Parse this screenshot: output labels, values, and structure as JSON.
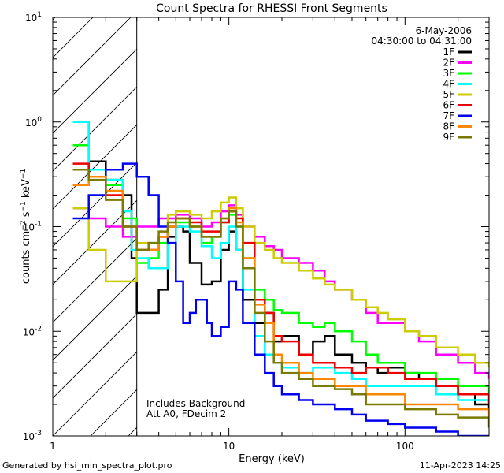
{
  "chart_data": {
    "type": "line",
    "title": "Count Spectra for RHESSI Front Segments",
    "xlabel": "Energy (keV)",
    "ylabel_parts": {
      "base": "counts cm",
      "exp1": "−2",
      "mid": " s",
      "exp2": "−1",
      "end": " keV",
      "exp3": "−1"
    },
    "x_scale": "log",
    "y_scale": "log",
    "xlim": [
      1,
      300
    ],
    "ylim": [
      0.001,
      10
    ],
    "x_ticks": [
      {
        "value": 1,
        "label": "1"
      },
      {
        "value": 10,
        "label": "10"
      },
      {
        "value": 100,
        "label": "100"
      }
    ],
    "y_ticks": [
      {
        "value": 0.001,
        "base": "10",
        "exp": "-3"
      },
      {
        "value": 0.01,
        "base": "10",
        "exp": "-2"
      },
      {
        "value": 0.1,
        "base": "10",
        "exp": "-1"
      },
      {
        "value": 1,
        "base": "10",
        "exp": "0"
      },
      {
        "value": 10,
        "base": "10",
        "exp": "1"
      }
    ],
    "hatch_region": {
      "xmin": 1,
      "xmax": 3
    },
    "date": "6-May-2006",
    "time_range": "04:30:00 to 04:31:00",
    "annotations": [
      "Includes Background",
      "Att A0, FDecim 2"
    ],
    "series": [
      {
        "name": "1F",
        "color": "#000000",
        "points": [
          [
            1.3,
            1.0
          ],
          [
            1.6,
            0.42
          ],
          [
            2.0,
            0.28
          ],
          [
            2.5,
            0.2
          ],
          [
            2.8,
            0.05
          ],
          [
            3.0,
            0.015
          ],
          [
            3.5,
            0.015
          ],
          [
            4.0,
            0.025
          ],
          [
            4.5,
            0.08
          ],
          [
            5.0,
            0.1
          ],
          [
            5.5,
            0.09
          ],
          [
            6.0,
            0.045
          ],
          [
            7.0,
            0.028
          ],
          [
            8.0,
            0.03
          ],
          [
            9.0,
            0.06
          ],
          [
            10.0,
            0.09
          ],
          [
            11.0,
            0.06
          ],
          [
            12.0,
            0.02
          ],
          [
            14.0,
            0.012
          ],
          [
            16.0,
            0.015
          ],
          [
            18.0,
            0.008
          ],
          [
            20.0,
            0.009
          ],
          [
            25.0,
            0.006
          ],
          [
            30.0,
            0.008
          ],
          [
            35.0,
            0.009
          ],
          [
            40.0,
            0.006
          ],
          [
            50.0,
            0.005
          ],
          [
            60.0,
            0.0045
          ],
          [
            70.0,
            0.004
          ],
          [
            80.0,
            0.0045
          ],
          [
            100.0,
            0.004
          ],
          [
            120.0,
            0.0035
          ],
          [
            150.0,
            0.003
          ],
          [
            200.0,
            0.0025
          ],
          [
            250.0,
            0.002
          ],
          [
            300.0,
            0.0018
          ]
        ]
      },
      {
        "name": "2F",
        "color": "#ff00ff",
        "points": [
          [
            1.3,
            0.15
          ],
          [
            1.6,
            0.12
          ],
          [
            2.0,
            0.1
          ],
          [
            2.5,
            0.08
          ],
          [
            3.0,
            0.1
          ],
          [
            3.5,
            0.1
          ],
          [
            4.0,
            0.12
          ],
          [
            4.5,
            0.12
          ],
          [
            5.0,
            0.13
          ],
          [
            6.0,
            0.12
          ],
          [
            7.0,
            0.1
          ],
          [
            8.0,
            0.11
          ],
          [
            9.0,
            0.14
          ],
          [
            10.0,
            0.16
          ],
          [
            11.0,
            0.13
          ],
          [
            12.0,
            0.1
          ],
          [
            14.0,
            0.08
          ],
          [
            16.0,
            0.065
          ],
          [
            18.0,
            0.06
          ],
          [
            20.0,
            0.05
          ],
          [
            25.0,
            0.045
          ],
          [
            30.0,
            0.038
          ],
          [
            35.0,
            0.03
          ],
          [
            40.0,
            0.025
          ],
          [
            50.0,
            0.02
          ],
          [
            60.0,
            0.015
          ],
          [
            70.0,
            0.012
          ],
          [
            80.0,
            0.012
          ],
          [
            100.0,
            0.01
          ],
          [
            120.0,
            0.008
          ],
          [
            150.0,
            0.006
          ],
          [
            200.0,
            0.005
          ],
          [
            250.0,
            0.004
          ],
          [
            300.0,
            0.0035
          ]
        ]
      },
      {
        "name": "3F",
        "color": "#00ff00",
        "points": [
          [
            1.3,
            0.6
          ],
          [
            1.6,
            0.35
          ],
          [
            2.0,
            0.25
          ],
          [
            2.5,
            0.12
          ],
          [
            3.0,
            0.045
          ],
          [
            3.5,
            0.05
          ],
          [
            4.0,
            0.07
          ],
          [
            4.5,
            0.1
          ],
          [
            5.0,
            0.11
          ],
          [
            6.0,
            0.1
          ],
          [
            7.0,
            0.07
          ],
          [
            8.0,
            0.08
          ],
          [
            9.0,
            0.11
          ],
          [
            10.0,
            0.13
          ],
          [
            11.0,
            0.1
          ],
          [
            12.0,
            0.05
          ],
          [
            14.0,
            0.025
          ],
          [
            16.0,
            0.02
          ],
          [
            18.0,
            0.016
          ],
          [
            20.0,
            0.015
          ],
          [
            25.0,
            0.012
          ],
          [
            30.0,
            0.011
          ],
          [
            35.0,
            0.012
          ],
          [
            40.0,
            0.01
          ],
          [
            50.0,
            0.008
          ],
          [
            60.0,
            0.006
          ],
          [
            70.0,
            0.005
          ],
          [
            80.0,
            0.005
          ],
          [
            100.0,
            0.004
          ],
          [
            150.0,
            0.0035
          ],
          [
            200.0,
            0.003
          ],
          [
            300.0,
            0.0025
          ]
        ]
      },
      {
        "name": "4F",
        "color": "#00ffff",
        "points": [
          [
            1.3,
            1.0
          ],
          [
            1.6,
            0.35
          ],
          [
            2.0,
            0.28
          ],
          [
            2.5,
            0.14
          ],
          [
            2.8,
            0.06
          ],
          [
            3.0,
            0.05
          ],
          [
            3.5,
            0.04
          ],
          [
            4.0,
            0.04
          ],
          [
            4.5,
            0.07
          ],
          [
            5.0,
            0.1
          ],
          [
            6.0,
            0.09
          ],
          [
            7.0,
            0.065
          ],
          [
            8.0,
            0.05
          ],
          [
            9.0,
            0.07
          ],
          [
            10.0,
            0.1
          ],
          [
            11.0,
            0.06
          ],
          [
            12.0,
            0.025
          ],
          [
            14.0,
            0.009
          ],
          [
            16.0,
            0.006
          ],
          [
            18.0,
            0.005
          ],
          [
            20.0,
            0.0045
          ],
          [
            25.0,
            0.004
          ],
          [
            30.0,
            0.0045
          ],
          [
            40.0,
            0.004
          ],
          [
            50.0,
            0.0035
          ],
          [
            60.0,
            0.003
          ],
          [
            80.0,
            0.003
          ],
          [
            100.0,
            0.003
          ],
          [
            150.0,
            0.0025
          ],
          [
            200.0,
            0.0022
          ],
          [
            300.0,
            0.002
          ]
        ]
      },
      {
        "name": "5F",
        "color": "#cccc00",
        "points": [
          [
            1.3,
            0.15
          ],
          [
            1.6,
            0.06
          ],
          [
            2.0,
            0.03
          ],
          [
            2.5,
            0.03
          ],
          [
            3.0,
            0.07
          ],
          [
            3.5,
            0.07
          ],
          [
            4.0,
            0.08
          ],
          [
            4.5,
            0.13
          ],
          [
            5.0,
            0.14
          ],
          [
            6.0,
            0.13
          ],
          [
            7.0,
            0.12
          ],
          [
            8.0,
            0.14
          ],
          [
            9.0,
            0.17
          ],
          [
            10.0,
            0.19
          ],
          [
            11.0,
            0.15
          ],
          [
            12.0,
            0.1
          ],
          [
            14.0,
            0.07
          ],
          [
            16.0,
            0.06
          ],
          [
            18.0,
            0.05
          ],
          [
            20.0,
            0.045
          ],
          [
            25.0,
            0.038
          ],
          [
            30.0,
            0.032
          ],
          [
            35.0,
            0.028
          ],
          [
            40.0,
            0.025
          ],
          [
            50.0,
            0.02
          ],
          [
            60.0,
            0.017
          ],
          [
            70.0,
            0.015
          ],
          [
            80.0,
            0.013
          ],
          [
            100.0,
            0.01
          ],
          [
            120.0,
            0.009
          ],
          [
            150.0,
            0.007
          ],
          [
            200.0,
            0.006
          ],
          [
            250.0,
            0.005
          ],
          [
            300.0,
            0.0045
          ]
        ]
      },
      {
        "name": "6F",
        "color": "#ee0000",
        "points": [
          [
            1.3,
            0.4
          ],
          [
            1.6,
            0.3
          ],
          [
            2.0,
            0.2
          ],
          [
            2.5,
            0.1
          ],
          [
            3.0,
            0.06
          ],
          [
            3.5,
            0.06
          ],
          [
            4.0,
            0.08
          ],
          [
            4.5,
            0.1
          ],
          [
            5.0,
            0.12
          ],
          [
            6.0,
            0.11
          ],
          [
            7.0,
            0.09
          ],
          [
            8.0,
            0.09
          ],
          [
            9.0,
            0.11
          ],
          [
            10.0,
            0.14
          ],
          [
            11.0,
            0.12
          ],
          [
            12.0,
            0.07
          ],
          [
            14.0,
            0.02
          ],
          [
            16.0,
            0.015
          ],
          [
            18.0,
            0.009
          ],
          [
            20.0,
            0.008
          ],
          [
            25.0,
            0.006
          ],
          [
            30.0,
            0.005
          ],
          [
            40.0,
            0.0045
          ],
          [
            50.0,
            0.004
          ],
          [
            60.0,
            0.0045
          ],
          [
            80.0,
            0.004
          ],
          [
            100.0,
            0.0035
          ],
          [
            150.0,
            0.003
          ],
          [
            200.0,
            0.0025
          ],
          [
            300.0,
            0.002
          ]
        ]
      },
      {
        "name": "7F",
        "color": "#0000ee",
        "points": [
          [
            1.3,
            0.12
          ],
          [
            1.6,
            0.2
          ],
          [
            2.0,
            0.35
          ],
          [
            2.5,
            0.4
          ],
          [
            3.0,
            0.3
          ],
          [
            3.5,
            0.2
          ],
          [
            4.0,
            0.1
          ],
          [
            4.5,
            0.07
          ],
          [
            5.0,
            0.03
          ],
          [
            5.5,
            0.012
          ],
          [
            6.0,
            0.015
          ],
          [
            6.5,
            0.02
          ],
          [
            7.0,
            0.02
          ],
          [
            7.5,
            0.012
          ],
          [
            8.0,
            0.009
          ],
          [
            9.0,
            0.011
          ],
          [
            10.0,
            0.03
          ],
          [
            11.0,
            0.025
          ],
          [
            12.0,
            0.012
          ],
          [
            14.0,
            0.006
          ],
          [
            16.0,
            0.004
          ],
          [
            18.0,
            0.003
          ],
          [
            20.0,
            0.0025
          ],
          [
            25.0,
            0.0022
          ],
          [
            30.0,
            0.002
          ],
          [
            40.0,
            0.0018
          ],
          [
            50.0,
            0.0016
          ],
          [
            60.0,
            0.0014
          ],
          [
            80.0,
            0.0013
          ],
          [
            100.0,
            0.0012
          ],
          [
            150.0,
            0.0011
          ],
          [
            200.0,
            0.001
          ],
          [
            300.0,
            0.0009
          ]
        ]
      },
      {
        "name": "8F",
        "color": "#ff8800",
        "points": [
          [
            1.3,
            0.25
          ],
          [
            1.6,
            0.3
          ],
          [
            2.0,
            0.22
          ],
          [
            2.5,
            0.1
          ],
          [
            3.0,
            0.06
          ],
          [
            3.5,
            0.06
          ],
          [
            4.0,
            0.08
          ],
          [
            4.5,
            0.1
          ],
          [
            5.0,
            0.12
          ],
          [
            6.0,
            0.1
          ],
          [
            7.0,
            0.08
          ],
          [
            8.0,
            0.08
          ],
          [
            9.0,
            0.12
          ],
          [
            10.0,
            0.15
          ],
          [
            11.0,
            0.11
          ],
          [
            12.0,
            0.05
          ],
          [
            14.0,
            0.018
          ],
          [
            16.0,
            0.012
          ],
          [
            18.0,
            0.006
          ],
          [
            20.0,
            0.005
          ],
          [
            25.0,
            0.004
          ],
          [
            30.0,
            0.0035
          ],
          [
            40.0,
            0.003
          ],
          [
            50.0,
            0.003
          ],
          [
            60.0,
            0.0025
          ],
          [
            80.0,
            0.0025
          ],
          [
            100.0,
            0.002
          ],
          [
            150.0,
            0.002
          ],
          [
            200.0,
            0.0018
          ],
          [
            300.0,
            0.0015
          ]
        ]
      },
      {
        "name": "9F",
        "color": "#7a7a00",
        "points": [
          [
            1.3,
            0.35
          ],
          [
            1.6,
            0.28
          ],
          [
            2.0,
            0.18
          ],
          [
            2.5,
            0.1
          ],
          [
            3.0,
            0.06
          ],
          [
            3.5,
            0.07
          ],
          [
            4.0,
            0.09
          ],
          [
            4.5,
            0.11
          ],
          [
            5.0,
            0.12
          ],
          [
            6.0,
            0.1
          ],
          [
            7.0,
            0.08
          ],
          [
            8.0,
            0.08
          ],
          [
            9.0,
            0.12
          ],
          [
            10.0,
            0.14
          ],
          [
            11.0,
            0.1
          ],
          [
            12.0,
            0.04
          ],
          [
            14.0,
            0.015
          ],
          [
            16.0,
            0.008
          ],
          [
            18.0,
            0.005
          ],
          [
            20.0,
            0.004
          ],
          [
            25.0,
            0.0035
          ],
          [
            30.0,
            0.003
          ],
          [
            40.0,
            0.0028
          ],
          [
            50.0,
            0.0025
          ],
          [
            60.0,
            0.002
          ],
          [
            80.0,
            0.002
          ],
          [
            100.0,
            0.0018
          ],
          [
            150.0,
            0.0016
          ],
          [
            200.0,
            0.0015
          ],
          [
            300.0,
            0.0012
          ]
        ]
      }
    ]
  },
  "footer": {
    "generated_by": "Generated by hsi_min_spectra_plot.pro",
    "timestamp": "11-Apr-2023 14:25"
  }
}
